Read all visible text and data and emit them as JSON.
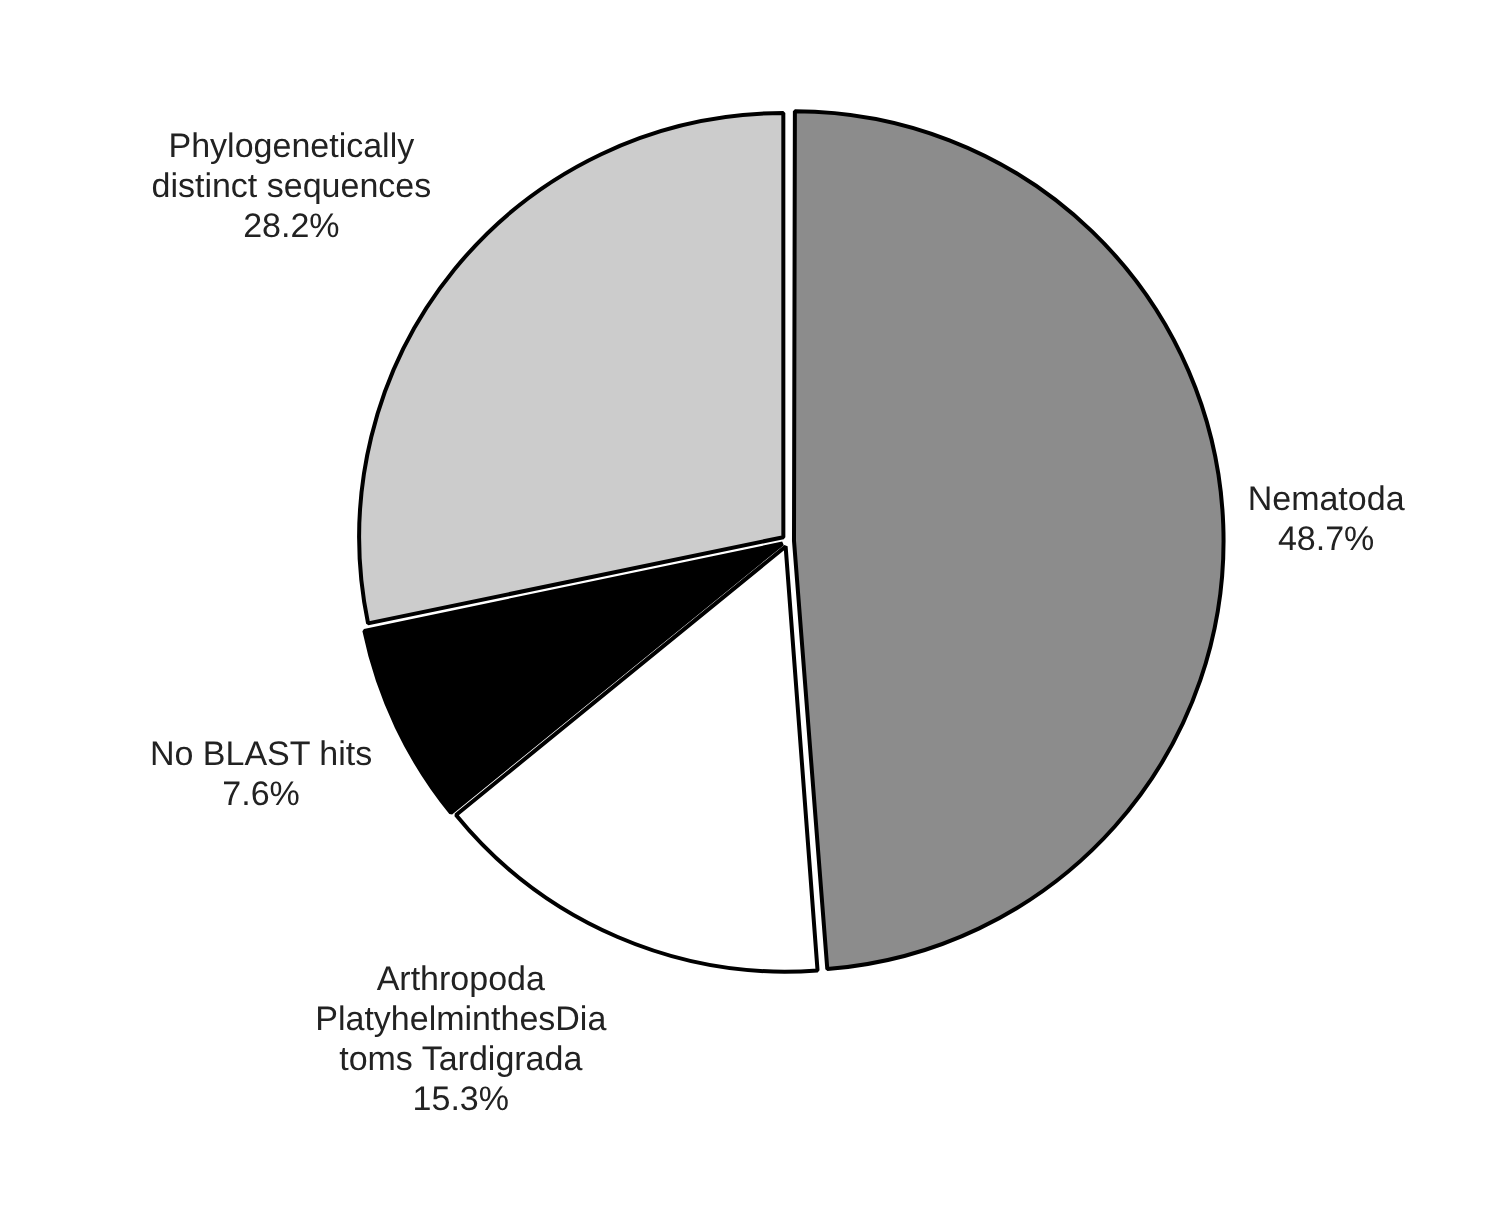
{
  "chart_data": {
    "type": "pie",
    "categories": [
      "Nematoda",
      "Arthropoda\nPlatyhelminthesDia\ntoms Tardigrada",
      "No BLAST hits",
      "Phylogenetically\ndistinct sequences"
    ],
    "values": [
      48.7,
      15.3,
      7.6,
      28.2
    ],
    "value_labels": [
      "48.7%",
      "15.3%",
      "7.6%",
      "28.2%"
    ],
    "colors": [
      "#8c8c8c",
      "#ffffff",
      "#000000",
      "#cccccc"
    ],
    "legend": false
  }
}
